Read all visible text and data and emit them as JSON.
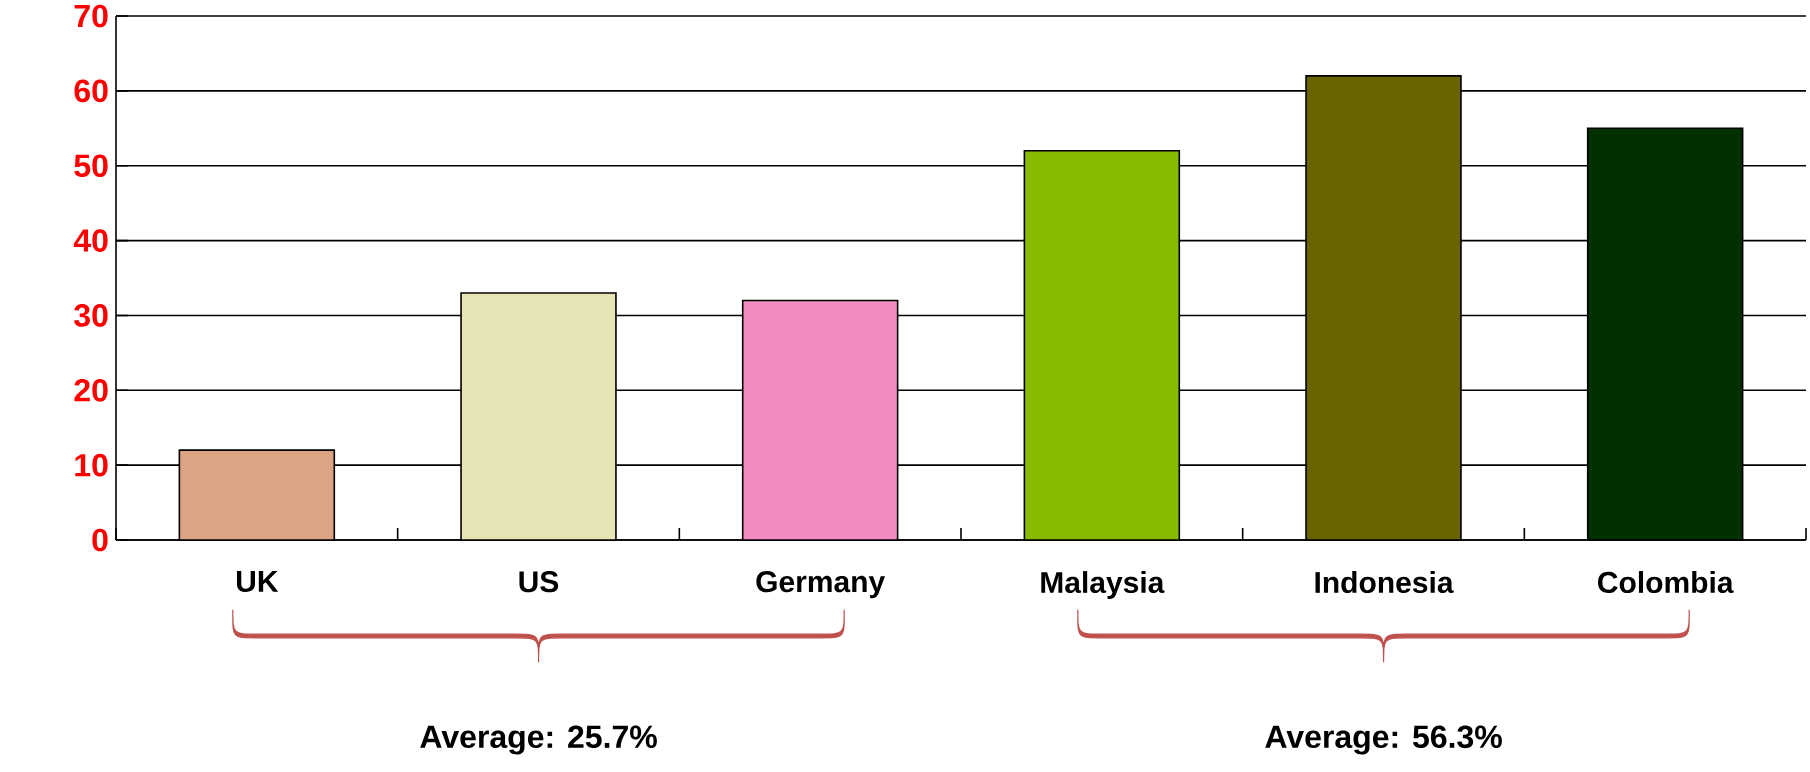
{
  "chart_data": {
    "type": "bar",
    "categories": [
      "UK",
      "US",
      "Germany",
      "Malaysia",
      "Indonesia",
      "Colombia"
    ],
    "values": [
      12,
      33,
      32,
      52,
      62,
      55
    ],
    "colors": [
      "#dba583",
      "#e6e4b4",
      "#f08cc0",
      "#86bb00",
      "#6a6400",
      "#033000"
    ],
    "ylim": [
      0,
      70
    ],
    "yticks": [
      0,
      10,
      20,
      30,
      40,
      50,
      60,
      70
    ],
    "grid": "y",
    "annotations": [
      "Average: 25.7%",
      "Average: 56.3%"
    ]
  }
}
